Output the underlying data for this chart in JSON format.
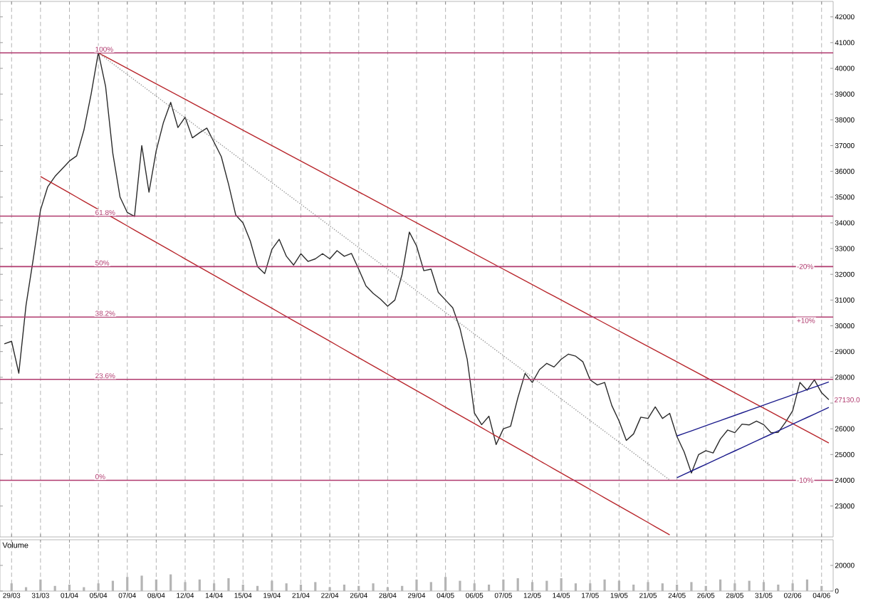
{
  "chart_data": [
    {
      "type": "line",
      "categories": [
        null,
        null,
        null,
        null,
        null,
        null,
        null,
        null,
        null,
        null,
        null,
        null,
        null,
        null,
        null,
        null,
        null,
        null,
        null,
        null,
        null,
        null,
        null,
        null,
        null,
        null,
        null,
        null,
        null,
        null,
        null,
        null,
        null,
        null,
        null,
        null,
        null,
        null,
        null,
        null,
        null,
        null,
        null,
        null,
        null,
        null,
        null,
        null,
        null,
        null,
        null,
        null,
        null,
        null,
        null,
        null,
        null,
        null,
        null,
        null,
        null,
        null,
        null,
        null,
        null,
        null,
        null,
        null,
        null,
        null,
        null,
        null,
        null,
        null,
        null,
        null,
        null,
        null,
        null,
        null,
        null,
        null,
        null,
        null,
        null,
        null,
        null,
        null,
        null,
        null,
        null,
        null,
        null,
        null,
        null,
        null,
        null,
        null,
        null,
        null,
        null,
        null,
        null,
        null,
        null,
        null,
        null,
        null,
        null,
        null,
        null,
        null,
        null,
        null,
        null
      ],
      "ylim": [
        21800,
        42600
      ],
      "yticks": [
        23000,
        24000,
        25000,
        26000,
        {
          "value": 27000,
          "label": null
        },
        28000,
        29000,
        30000,
        31000,
        32000,
        33000,
        34000,
        35000,
        36000,
        37000,
        38000,
        39000,
        40000,
        41000,
        42000
      ],
      "tick_labels": "y",
      "grid": "x",
      "series": [
        {
          "color": "#2b2b2b",
          "values": [
            29300,
            29400,
            28160,
            30800,
            32600,
            34500,
            35400,
            35800,
            36100,
            36400,
            36600,
            37600,
            39000,
            40620,
            39300,
            36700,
            35000,
            34400,
            34250,
            37000,
            35190,
            36800,
            37900,
            38680,
            37700,
            38100,
            37300,
            37500,
            37680,
            37130,
            36570,
            35500,
            34300,
            34000,
            33300,
            32300,
            32030,
            32970,
            33360,
            32700,
            32360,
            32800,
            32500,
            32600,
            32800,
            32600,
            32920,
            32700,
            32810,
            32200,
            31550,
            31260,
            31040,
            30760,
            31000,
            32000,
            33640,
            33100,
            32140,
            32200,
            31300,
            31000,
            30700,
            29900,
            28700,
            26610,
            26160,
            26490,
            25390,
            26000,
            26100,
            27200,
            28150,
            27800,
            28300,
            28540,
            28400,
            28700,
            28900,
            28820,
            28600,
            27900,
            27700,
            27800,
            26900,
            26300,
            25550,
            25800,
            26450,
            26400,
            26850,
            26400,
            26600,
            25700,
            25100,
            24280,
            25000,
            25150,
            25060,
            25600,
            25950,
            25850,
            26180,
            26150,
            26300,
            26160,
            25850,
            25860,
            26250,
            26700,
            27800,
            27500,
            27900,
            27400,
            27130
          ]
        },
        {
          "color": "#b8262c",
          "values": [
            null,
            null,
            null,
            null,
            null,
            null,
            null,
            null,
            null,
            null,
            null,
            null,
            null,
            40600,
            40450,
            40300,
            40150,
            40000,
            39850,
            39700,
            39550,
            39400,
            39250,
            39100,
            38950,
            38800,
            38650,
            38500,
            38350,
            38200,
            38050,
            37900,
            37750,
            37600,
            37450,
            37300,
            37150,
            37000,
            36850,
            36700,
            36550,
            36400,
            36250,
            36100,
            35950,
            35800,
            35650,
            35500,
            35350,
            35200,
            35050,
            34900,
            34750,
            34600,
            34450,
            34300,
            34150,
            34000,
            33850,
            33700,
            33550,
            33400,
            33250,
            33100,
            32950,
            32800,
            32650,
            32500,
            32350,
            32200,
            32050,
            31900,
            31750,
            31600,
            31450,
            31300,
            31150,
            31000,
            30850,
            30700,
            30550,
            30400,
            30250,
            30100,
            29950,
            29800,
            29650,
            29500,
            29350,
            29200,
            29050,
            28900,
            28750,
            28600,
            28450,
            28300,
            28150,
            28000,
            27850,
            27700,
            27550,
            27400,
            27250,
            27100,
            26950,
            26800,
            26650,
            26500,
            26350,
            26200,
            26050,
            25900,
            25750,
            25600,
            25450
          ]
        },
        {
          "color": "#b8262c",
          "values": [
            null,
            null,
            null,
            null,
            null,
            35800,
            35640,
            35480,
            35320,
            35160,
            35000,
            34840,
            34680,
            34520,
            34360,
            34200,
            34040,
            33880,
            33720,
            33560,
            33400,
            33240,
            33080,
            32920,
            32760,
            32600,
            32440,
            32280,
            32120,
            31960,
            31800,
            31640,
            31480,
            31320,
            31160,
            31000,
            30840,
            30680,
            30520,
            30360,
            30200,
            30040,
            29880,
            29720,
            29560,
            29400,
            29240,
            29080,
            28920,
            28760,
            28600,
            28440,
            28280,
            28120,
            27960,
            27800,
            27640,
            27480,
            27320,
            27160,
            27000,
            26840,
            26680,
            26520,
            26360,
            26200,
            26040,
            25880,
            25720,
            25560,
            25400,
            25240,
            25080,
            24920,
            24760,
            24600,
            24440,
            24280,
            24120,
            23960,
            23800,
            23640,
            23480,
            23320,
            23160,
            23000,
            22840,
            22680,
            22520,
            22360,
            22200,
            22040,
            21880,
            null,
            null,
            null,
            null,
            null,
            null,
            null,
            null,
            null,
            null,
            null,
            null,
            null,
            null,
            null,
            null,
            null,
            null,
            null,
            null,
            null,
            null
          ]
        },
        {
          "color": "#9a9a9a",
          "line_style": "dotted",
          "values": [
            null,
            null,
            null,
            null,
            null,
            null,
            null,
            null,
            null,
            null,
            null,
            null,
            null,
            40600,
            40390,
            40180,
            39970,
            39760,
            39550,
            39340,
            39130,
            38920,
            38710,
            38500,
            38290,
            38080,
            37870,
            37660,
            37450,
            37240,
            37030,
            36820,
            36610,
            36400,
            36190,
            35980,
            35770,
            35560,
            35350,
            35140,
            34930,
            34720,
            34510,
            34300,
            34090,
            33880,
            33670,
            33460,
            33250,
            33040,
            32830,
            32620,
            32410,
            32200,
            31990,
            31780,
            31570,
            31360,
            31150,
            30940,
            30730,
            30520,
            30310,
            30100,
            29890,
            29680,
            29470,
            29260,
            29050,
            28840,
            28630,
            28420,
            28210,
            28000,
            27790,
            27580,
            27370,
            27160,
            26950,
            26740,
            26530,
            26320,
            26110,
            25900,
            25690,
            25480,
            25270,
            25060,
            24850,
            24640,
            24430,
            24220,
            24010,
            null,
            null,
            null,
            null,
            null,
            null,
            null,
            null,
            null,
            null,
            null,
            null,
            null,
            null,
            null,
            null,
            null,
            null,
            null,
            null,
            null,
            null
          ]
        },
        {
          "color": "#1c1c8c",
          "values": [
            null,
            null,
            null,
            null,
            null,
            null,
            null,
            null,
            null,
            null,
            null,
            null,
            null,
            null,
            null,
            null,
            null,
            null,
            null,
            null,
            null,
            null,
            null,
            null,
            null,
            null,
            null,
            null,
            null,
            null,
            null,
            null,
            null,
            null,
            null,
            null,
            null,
            null,
            null,
            null,
            null,
            null,
            null,
            null,
            null,
            null,
            null,
            null,
            null,
            null,
            null,
            null,
            null,
            null,
            null,
            null,
            null,
            null,
            null,
            null,
            null,
            null,
            null,
            null,
            null,
            null,
            null,
            null,
            null,
            null,
            null,
            null,
            null,
            null,
            null,
            null,
            null,
            null,
            null,
            null,
            null,
            null,
            null,
            null,
            null,
            null,
            null,
            null,
            null,
            null,
            null,
            null,
            null,
            25720,
            25820,
            25920,
            26020,
            26120,
            26220,
            26320,
            26420,
            26520,
            26620,
            26720,
            26820,
            26920,
            27020,
            27120,
            27220,
            27320,
            27420,
            27520,
            27620,
            27720,
            27820
          ]
        },
        {
          "color": "#1c1c8c",
          "values": [
            null,
            null,
            null,
            null,
            null,
            null,
            null,
            null,
            null,
            null,
            null,
            null,
            null,
            null,
            null,
            null,
            null,
            null,
            null,
            null,
            null,
            null,
            null,
            null,
            null,
            null,
            null,
            null,
            null,
            null,
            null,
            null,
            null,
            null,
            null,
            null,
            null,
            null,
            null,
            null,
            null,
            null,
            null,
            null,
            null,
            null,
            null,
            null,
            null,
            null,
            null,
            null,
            null,
            null,
            null,
            null,
            null,
            null,
            null,
            null,
            null,
            null,
            null,
            null,
            null,
            null,
            null,
            null,
            null,
            null,
            null,
            null,
            null,
            null,
            null,
            null,
            null,
            null,
            null,
            null,
            null,
            null,
            null,
            null,
            null,
            null,
            null,
            null,
            null,
            null,
            null,
            null,
            null,
            24100,
            24230,
            24360,
            24490,
            24620,
            24750,
            24880,
            25010,
            25140,
            25270,
            25400,
            25530,
            25660,
            25790,
            25920,
            26050,
            26180,
            26310,
            26440,
            26570,
            26700,
            26830
          ]
        }
      ],
      "ref_lines": [
        {
          "axis": "y",
          "value": 40600,
          "color": "#b03a6e"
        },
        {
          "axis": "y",
          "value": 34259,
          "color": "#b03a6e"
        },
        {
          "axis": "y",
          "value": 32300,
          "color": "#b03a6e"
        },
        {
          "axis": "y",
          "value": 30341,
          "color": "#b03a6e"
        },
        {
          "axis": "y",
          "value": 27918,
          "color": "#b03a6e"
        },
        {
          "axis": "y",
          "value": 24000,
          "color": "#b03a6e"
        }
      ],
      "annotations": [
        {
          "text": "100%",
          "y": 40600
        },
        {
          "text": "61.8%",
          "y": 34259
        },
        {
          "text": "50%",
          "y": 32300
        },
        {
          "text": "38.2%",
          "y": 30341
        },
        {
          "text": "23.6%",
          "y": 27918
        },
        {
          "text": "0%",
          "y": 24000
        },
        "+10%",
        "-20%",
        "-10%",
        "27130.0"
      ]
    },
    {
      "type": "bar",
      "title": "Volume",
      "color": "#b4b4b4",
      "categories": [
        null,
        "29/03",
        null,
        null,
        null,
        "31/03",
        null,
        null,
        null,
        "01/04",
        null,
        null,
        null,
        "05/04",
        null,
        null,
        null,
        "07/04",
        null,
        null,
        null,
        "08/04",
        null,
        null,
        null,
        "12/04",
        null,
        null,
        null,
        "14/04",
        null,
        null,
        null,
        "15/04",
        null,
        null,
        null,
        "19/04",
        null,
        null,
        null,
        "21/04",
        null,
        null,
        null,
        "22/04",
        null,
        null,
        null,
        "26/04",
        null,
        null,
        null,
        "28/04",
        null,
        null,
        null,
        "29/04",
        null,
        null,
        null,
        "04/05",
        null,
        null,
        null,
        "06/05",
        null,
        null,
        null,
        "07/05",
        null,
        null,
        null,
        "12/05",
        null,
        null,
        null,
        "14/05",
        null,
        null,
        null,
        "17/05",
        null,
        null,
        null,
        "19/05",
        null,
        null,
        null,
        "21/05",
        null,
        null,
        null,
        "24/05",
        null,
        null,
        null,
        "26/05",
        null,
        null,
        null,
        "28/05",
        null,
        null,
        null,
        "31/05",
        null,
        null,
        null,
        "02/06",
        null,
        null,
        null,
        "04/06",
        null
      ],
      "values": [
        null,
        6000,
        null,
        3000,
        null,
        9000,
        null,
        4000,
        null,
        5000,
        null,
        3000,
        null,
        6000,
        null,
        8000,
        null,
        11000,
        null,
        12000,
        null,
        9000,
        null,
        13000,
        null,
        7000,
        null,
        9000,
        null,
        6000,
        null,
        10000,
        null,
        5000,
        null,
        4000,
        null,
        8000,
        null,
        6000,
        null,
        5000,
        null,
        7000,
        null,
        3000,
        null,
        5000,
        null,
        4000,
        null,
        6000,
        null,
        3000,
        null,
        4000,
        null,
        9000,
        null,
        7000,
        null,
        11000,
        null,
        8000,
        null,
        6000,
        null,
        5000,
        null,
        9000,
        null,
        10000,
        null,
        7000,
        null,
        8000,
        null,
        10000,
        null,
        6000,
        null,
        6000,
        null,
        9000,
        null,
        8000,
        null,
        5000,
        null,
        7000,
        null,
        6000,
        null,
        5000,
        null,
        7000,
        null,
        4000,
        null,
        9000,
        null,
        6000,
        null,
        8000,
        null,
        7000,
        null,
        5000,
        null,
        6000,
        null,
        9000,
        null,
        4000,
        null
      ],
      "ylim": [
        0,
        40000
      ],
      "yticks": [
        0,
        20000
      ],
      "grid": "x"
    }
  ]
}
